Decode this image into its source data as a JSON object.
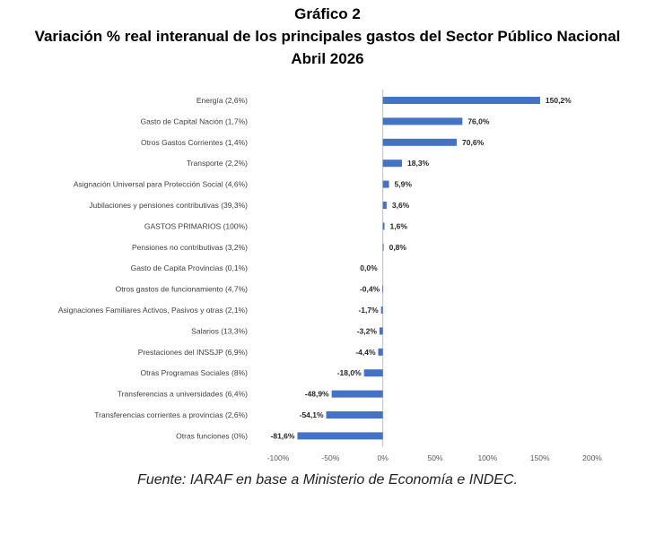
{
  "header": {
    "label": "Gráfico 2",
    "title": "Variación % real interanual de los principales gastos del Sector Público Nacional",
    "period": "Abril 2026"
  },
  "source": "Fuente: IARAF en base a Ministerio de Economía e INDEC.",
  "colors": {
    "bar": "#4472c4",
    "axis": "#bfbfbf",
    "text": "#404040"
  },
  "chart_data": {
    "type": "bar",
    "orientation": "horizontal",
    "title": "Variación % real interanual de los principales gastos del Sector Público Nacional",
    "categories": [
      "Energía (2,6%)",
      "Gasto de Capital Nación (1,7%)",
      "Otros Gastos Corrientes     (1,4%)",
      "Transporte (2,2%)",
      "Asignación Universal para Protección Social (4,6%)",
      "Jubilaciones y pensiones contributivas (39,3%)",
      "GASTOS PRIMARIOS (100%)",
      "Pensiones no contributivas (3,2%)",
      "Gasto de Capita Provincias (0,1%)",
      "Otros gastos de funcionamiento (4,7%)",
      "Asignaciones Familiares Activos, Pasivos y otras (2,1%)",
      "Salarios (13,3%)",
      "Prestaciones del INSSJP (6,9%)",
      "Otras Programas Sociales  (8%)",
      "Transferencias a universidades (6,4%)",
      "Transferencias corrientes a provincias (2,6%)",
      "Otras funciones   (0%)"
    ],
    "values": [
      150.2,
      76.0,
      70.6,
      18.3,
      5.9,
      3.6,
      1.6,
      0.8,
      0.0,
      -0.4,
      -1.7,
      -3.2,
      -4.4,
      -18.0,
      -48.9,
      -54.1,
      -81.6
    ],
    "value_labels": [
      "150,2%",
      "76,0%",
      "70,6%",
      "18,3%",
      "5,9%",
      "3,6%",
      "1,6%",
      "0,8%",
      "0,0%",
      "-0,4%",
      "-1,7%",
      "-3,2%",
      "-4,4%",
      "-18,0%",
      "-48,9%",
      "-54,1%",
      "-81,6%"
    ],
    "xlim": [
      -100,
      200
    ],
    "xticks": [
      -100,
      -50,
      0,
      50,
      100,
      150,
      200
    ],
    "xtick_labels": [
      "-100%",
      "-50%",
      "0%",
      "50%",
      "100%",
      "150%",
      "200%"
    ],
    "xlabel": "",
    "ylabel": "",
    "grid": false,
    "legend": false
  }
}
